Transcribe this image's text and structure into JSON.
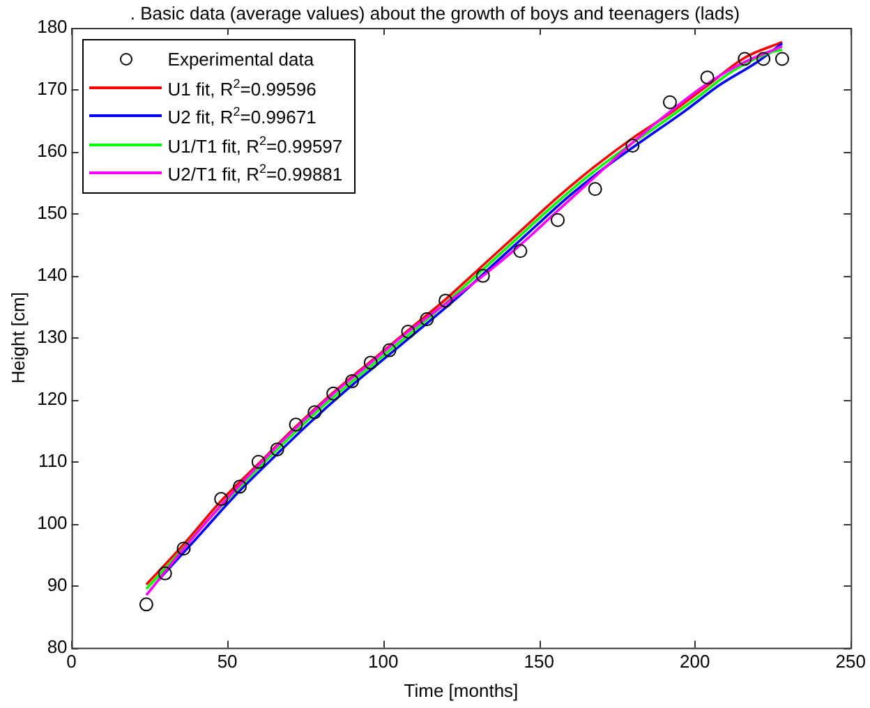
{
  "chart_data": {
    "type": "scatter",
    "title": ". Basic data (average values) about the growth of boys and teenagers (lads)",
    "xlabel": "Time [months]",
    "ylabel": "Height [cm]",
    "xlim": [
      0,
      250
    ],
    "xticks": [
      0,
      50,
      100,
      150,
      200,
      250
    ],
    "ylim": [
      80,
      180
    ],
    "yticks": [
      80,
      90,
      100,
      110,
      120,
      130,
      140,
      150,
      160,
      170,
      180
    ],
    "grid": false,
    "legend": "top left",
    "marker": "circle",
    "series": [
      {
        "name": "Experimental data",
        "color": "#000000",
        "x": [
          24,
          30,
          36,
          48,
          54,
          60,
          66,
          72,
          78,
          84,
          90,
          96,
          102,
          108,
          114,
          120,
          132,
          144,
          156,
          168,
          180,
          192,
          204,
          216,
          222,
          228
        ],
        "values": [
          87,
          92,
          96,
          104,
          106,
          110,
          112,
          116,
          118,
          121,
          123,
          126,
          128,
          131,
          133,
          136,
          140,
          144,
          149,
          154,
          161,
          168,
          172,
          175,
          175,
          175
        ]
      },
      {
        "name": "U1 fit, R$^{2}$=0.99596",
        "type": "line",
        "marker": "none",
        "color": "#ff0000",
        "x": [
          24,
          36,
          48,
          60,
          72,
          84,
          96,
          108,
          120,
          132,
          144,
          156,
          168,
          180,
          192,
          204,
          216,
          228
        ],
        "values": [
          90.2,
          96.7,
          103.7,
          109.7,
          115.7,
          121.2,
          126.2,
          131.2,
          136.2,
          141.7,
          147.2,
          152.7,
          157.7,
          162.2,
          166.2,
          170.7,
          175.2,
          177.7
        ]
      },
      {
        "name": "U2 fit, R$^{2}$=0.99671",
        "type": "line",
        "marker": "none",
        "color": "#0000ff",
        "x": [
          28,
          40,
          52,
          64,
          76,
          88,
          100,
          112,
          124,
          136,
          148,
          160,
          172,
          184,
          196,
          208,
          220,
          228
        ],
        "values": [
          91,
          97.6,
          104.3,
          110.3,
          116.1,
          121.5,
          126.5,
          131.5,
          136.6,
          142.1,
          147.6,
          153,
          157.8,
          162.1,
          166.3,
          170.8,
          174.5,
          177.5
        ]
      },
      {
        "name": "U1/T1 fit, R$^{2}$=0.99597",
        "type": "line",
        "marker": "none",
        "color": "#00ff00",
        "x": [
          24,
          32,
          44,
          56,
          68,
          80,
          92,
          104,
          116,
          128,
          140,
          152,
          164,
          176,
          188,
          200,
          212,
          224,
          228
        ],
        "values": [
          89.5,
          93.9,
          100.7,
          107,
          113,
          118.7,
          123.8,
          128.8,
          133.8,
          139.2,
          144.7,
          150.2,
          155.4,
          160,
          164.2,
          168.5,
          173,
          176,
          176.5
        ]
      },
      {
        "name": "U2/T1 fit, R$^{2}$=0.99881",
        "type": "line",
        "marker": "none",
        "color": "#ff00ff",
        "x": [
          24,
          36,
          48,
          60,
          72,
          84,
          96,
          108,
          120,
          132,
          144,
          156,
          168,
          180,
          192,
          204,
          216,
          228
        ],
        "values": [
          88.5,
          96,
          103,
          109.5,
          115.5,
          121,
          126,
          131,
          135.5,
          140,
          145,
          150.5,
          156,
          161.5,
          166.5,
          171,
          174.5,
          177
        ]
      }
    ]
  }
}
